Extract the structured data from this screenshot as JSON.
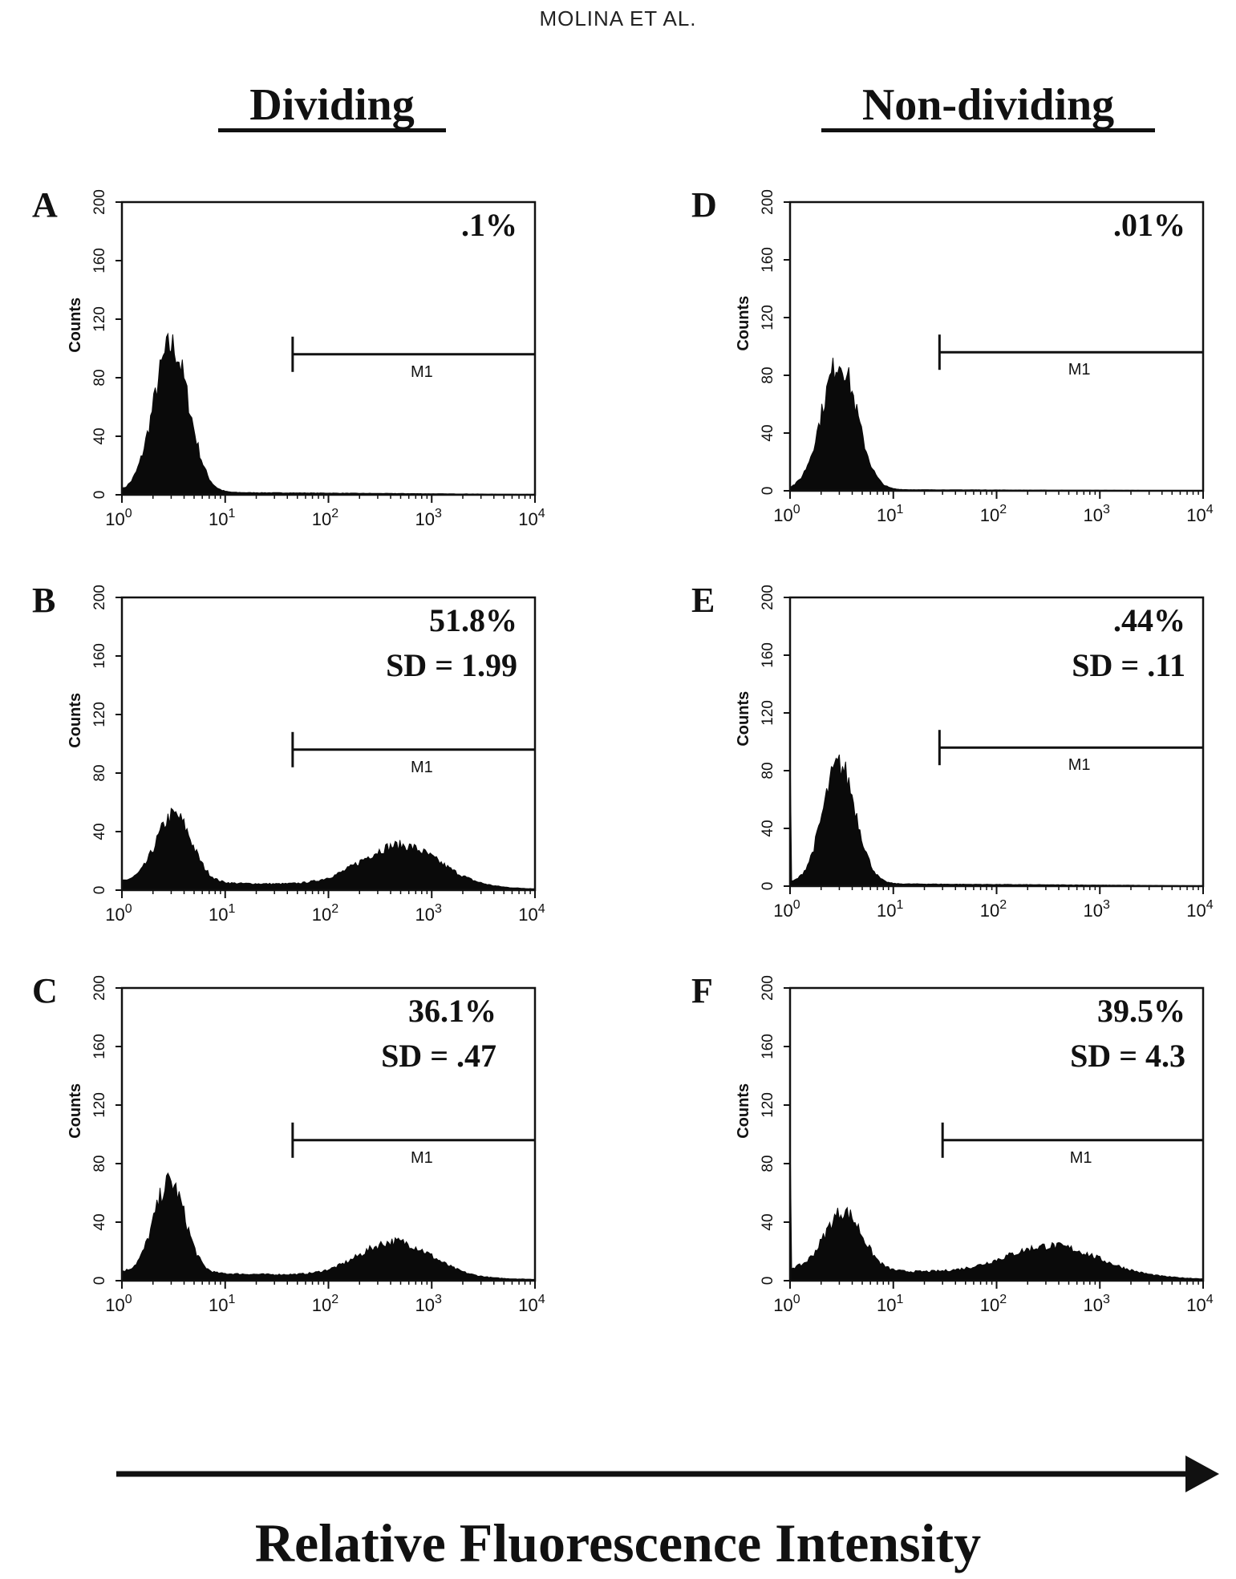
{
  "header": {
    "running_head": "MOLINA  ET  AL."
  },
  "columns": {
    "left": "Dividing",
    "right": "Non-dividing"
  },
  "footer": {
    "axis_title": "Relative Fluorescence Intensity"
  },
  "chart_data": [
    {
      "panel": "A",
      "type": "histogram",
      "ylabel": "Counts",
      "ylim": [
        0,
        200
      ],
      "yticks": [
        0,
        40,
        80,
        120,
        160,
        200
      ],
      "xscale": "log",
      "xlim": [
        1,
        10000
      ],
      "xticks": [
        "10^0",
        "10^1",
        "10^2",
        "10^3",
        "10^4"
      ],
      "gate": {
        "label": "M1",
        "start": 45,
        "end": 10000
      },
      "annotation": [
        ".1%"
      ],
      "peaks": [
        {
          "center": 3.0,
          "height": 100,
          "width": 0.17
        }
      ],
      "baseline": 2
    },
    {
      "panel": "B",
      "type": "histogram",
      "ylabel": "Counts",
      "ylim": [
        0,
        200
      ],
      "yticks": [
        0,
        40,
        80,
        120,
        160,
        200
      ],
      "xscale": "log",
      "xlim": [
        1,
        10000
      ],
      "xticks": [
        "10^0",
        "10^1",
        "10^2",
        "10^3",
        "10^4"
      ],
      "gate": {
        "label": "M1",
        "start": 45,
        "end": 10000
      },
      "annotation": [
        "51.8%",
        "SD = 1.99"
      ],
      "peaks": [
        {
          "center": 3.2,
          "height": 46,
          "width": 0.17
        },
        {
          "center": 500,
          "height": 28,
          "width": 0.38
        }
      ],
      "baseline": 6
    },
    {
      "panel": "C",
      "type": "histogram",
      "ylabel": "Counts",
      "ylim": [
        0,
        200
      ],
      "yticks": [
        0,
        40,
        80,
        120,
        160,
        200
      ],
      "xscale": "log",
      "xlim": [
        1,
        10000
      ],
      "xticks": [
        "10^0",
        "10^1",
        "10^2",
        "10^3",
        "10^4"
      ],
      "gate": {
        "label": "M1",
        "start": 45,
        "end": 10000
      },
      "annotation": [
        "36.1%",
        "SD = .47"
      ],
      "peaks": [
        {
          "center": 2.9,
          "height": 62,
          "width": 0.15
        },
        {
          "center": 450,
          "height": 24,
          "width": 0.35
        }
      ],
      "baseline": 6
    },
    {
      "panel": "D",
      "type": "histogram",
      "ylabel": "Counts",
      "ylim": [
        0,
        200
      ],
      "yticks": [
        0,
        40,
        80,
        120,
        160,
        200
      ],
      "xscale": "log",
      "xlim": [
        1,
        10000
      ],
      "xticks": [
        "10^0",
        "10^1",
        "10^2",
        "10^3",
        "10^4"
      ],
      "gate": {
        "label": "M1",
        "start": 28,
        "end": 10000
      },
      "annotation": [
        ".01%"
      ],
      "peaks": [
        {
          "center": 3.0,
          "height": 88,
          "width": 0.17
        }
      ],
      "baseline": 1
    },
    {
      "panel": "E",
      "type": "histogram",
      "ylabel": "Counts",
      "ylim": [
        0,
        200
      ],
      "yticks": [
        0,
        40,
        80,
        120,
        160,
        200
      ],
      "xscale": "log",
      "xlim": [
        1,
        10000
      ],
      "xticks": [
        "10^0",
        "10^1",
        "10^2",
        "10^3",
        "10^4"
      ],
      "gate": {
        "label": "M1",
        "start": 28,
        "end": 10000
      },
      "annotation": [
        ".44%",
        "SD = .11"
      ],
      "peaks": [
        {
          "center": 3.0,
          "height": 82,
          "width": 0.16
        }
      ],
      "baseline": 2
    },
    {
      "panel": "F",
      "type": "histogram",
      "ylabel": "Counts",
      "ylim": [
        0,
        200
      ],
      "yticks": [
        0,
        40,
        80,
        120,
        160,
        200
      ],
      "xscale": "log",
      "xlim": [
        1,
        10000
      ],
      "xticks": [
        "10^0",
        "10^1",
        "10^2",
        "10^3",
        "10^4"
      ],
      "gate": {
        "label": "M1",
        "start": 30,
        "end": 10000
      },
      "annotation": [
        "39.5%",
        "SD = 4.3"
      ],
      "peaks": [
        {
          "center": 3.3,
          "height": 40,
          "width": 0.18
        },
        {
          "center": 350,
          "height": 20,
          "width": 0.45
        }
      ],
      "baseline": 8
    }
  ]
}
